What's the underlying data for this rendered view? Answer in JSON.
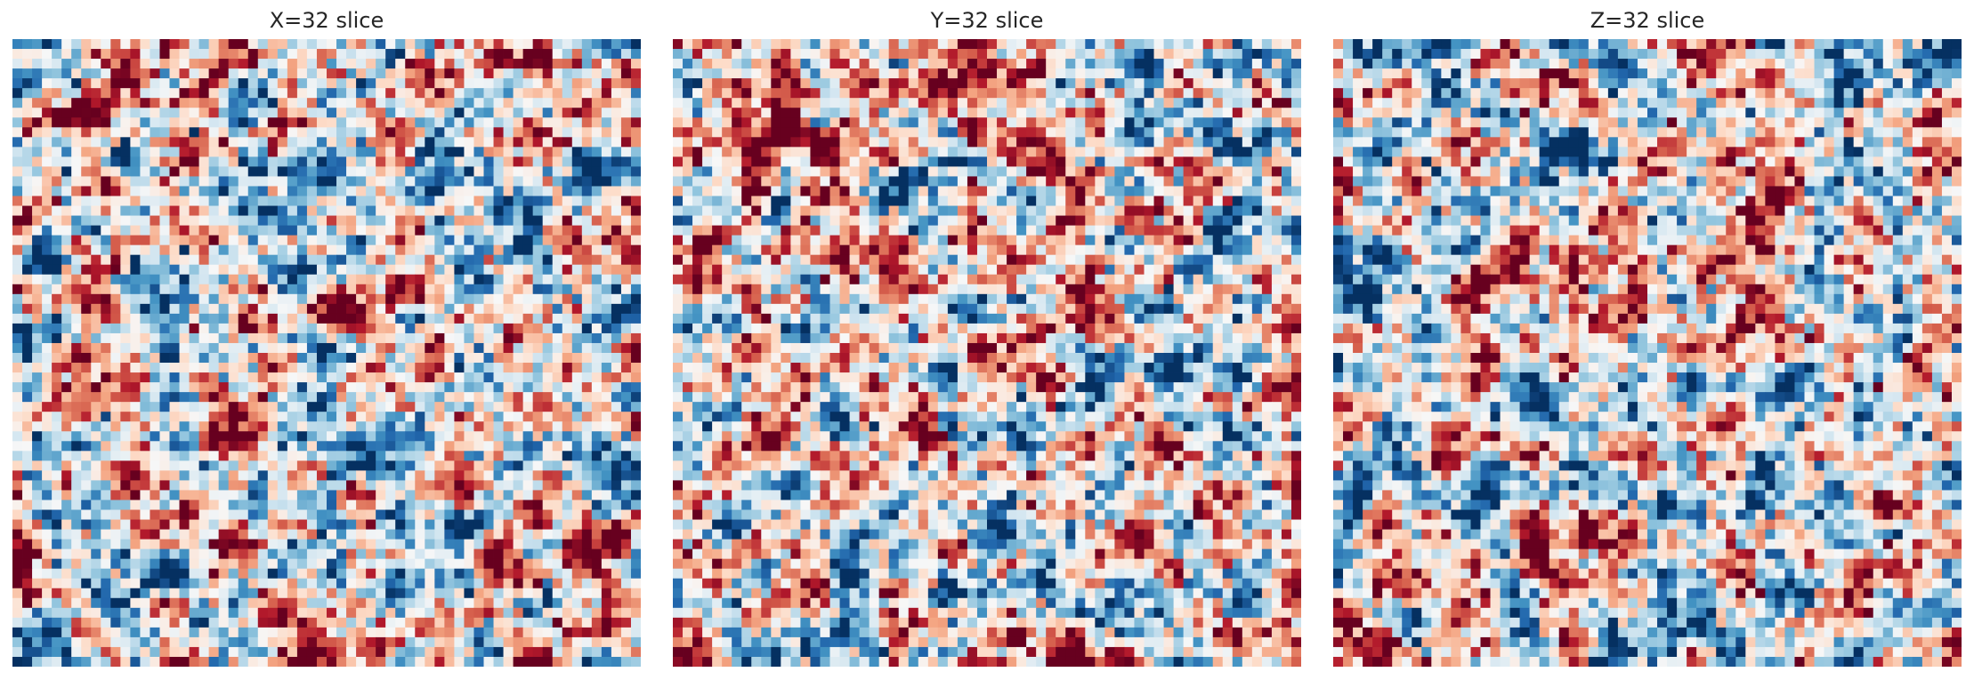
{
  "chart_data": [
    {
      "type": "heatmap",
      "title": "X=32 slice",
      "grid": false,
      "axes_visible": false,
      "colormap": "RdBu_r",
      "grid_size": [
        64,
        64
      ],
      "seed": 11
    },
    {
      "type": "heatmap",
      "title": "Y=32 slice",
      "grid": false,
      "axes_visible": false,
      "colormap": "RdBu_r",
      "grid_size": [
        64,
        64
      ],
      "seed": 23
    },
    {
      "type": "heatmap",
      "title": "Z=32 slice",
      "grid": false,
      "axes_visible": false,
      "colormap": "RdBu_r",
      "grid_size": [
        64,
        64
      ],
      "seed": 37
    }
  ]
}
